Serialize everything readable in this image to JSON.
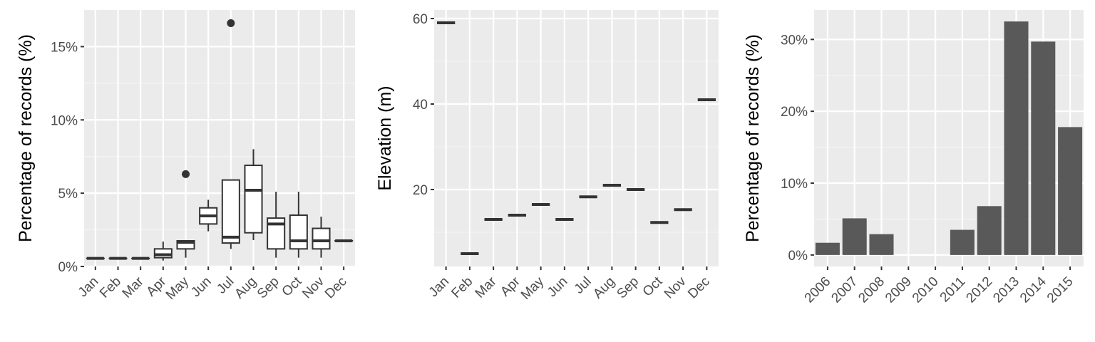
{
  "colors": {
    "panel_bg": "#ebebeb",
    "grid_major": "#ffffff",
    "grid_minor": "#f5f5f5",
    "box_stroke": "#333333",
    "bar_fill": "#595959",
    "tick_text": "#4d4d4d"
  },
  "chart_data": [
    {
      "type": "box",
      "ylabel": "Percentage of records (%)",
      "xlabel": "",
      "categories": [
        "Jan",
        "Feb",
        "Mar",
        "Apr",
        "May",
        "Jun",
        "Jul",
        "Aug",
        "Sep",
        "Oct",
        "Nov",
        "Dec"
      ],
      "ylim": [
        0,
        17.5
      ],
      "yticks": [
        0,
        5,
        10,
        15
      ],
      "ytick_labels": [
        "0%",
        "5%",
        "10%",
        "15%"
      ],
      "boxes": [
        {
          "min": 0.55,
          "q1": 0.55,
          "median": 0.55,
          "q3": 0.55,
          "max": 0.55,
          "outliers": []
        },
        {
          "min": 0.55,
          "q1": 0.55,
          "median": 0.55,
          "q3": 0.55,
          "max": 0.55,
          "outliers": []
        },
        {
          "min": 0.55,
          "q1": 0.55,
          "median": 0.55,
          "q3": 0.55,
          "max": 0.55,
          "outliers": []
        },
        {
          "min": 0.4,
          "q1": 0.6,
          "median": 0.8,
          "q3": 1.2,
          "max": 1.7,
          "outliers": []
        },
        {
          "min": 0.6,
          "q1": 1.2,
          "median": 1.65,
          "q3": 1.75,
          "max": 1.75,
          "outliers": [
            6.3
          ]
        },
        {
          "min": 2.4,
          "q1": 2.9,
          "median": 3.45,
          "q3": 4.0,
          "max": 4.55,
          "outliers": []
        },
        {
          "min": 1.2,
          "q1": 1.6,
          "median": 2.0,
          "q3": 5.9,
          "max": 5.9,
          "outliers": [
            16.6
          ]
        },
        {
          "min": 1.8,
          "q1": 2.3,
          "median": 5.2,
          "q3": 6.9,
          "max": 8.0,
          "outliers": []
        },
        {
          "min": 0.6,
          "q1": 1.2,
          "median": 2.9,
          "q3": 3.3,
          "max": 5.1,
          "outliers": []
        },
        {
          "min": 0.6,
          "q1": 1.2,
          "median": 1.75,
          "q3": 3.5,
          "max": 5.1,
          "outliers": []
        },
        {
          "min": 0.6,
          "q1": 1.2,
          "median": 1.75,
          "q3": 2.6,
          "max": 3.4,
          "outliers": []
        },
        {
          "min": 1.75,
          "q1": 1.75,
          "median": 1.75,
          "q3": 1.75,
          "max": 1.75,
          "outliers": []
        }
      ]
    },
    {
      "type": "box",
      "ylabel": "Elevation (m)",
      "xlabel": "",
      "categories": [
        "Jan",
        "Feb",
        "Mar",
        "Apr",
        "May",
        "Jun",
        "Jul",
        "Aug",
        "Sep",
        "Oct",
        "Nov",
        "Dec"
      ],
      "ylim": [
        2,
        62
      ],
      "yticks": [
        20,
        40,
        60
      ],
      "ytick_labels": [
        "20",
        "40",
        "60"
      ],
      "values": [
        59,
        5,
        13,
        14,
        16.5,
        13,
        18.3,
        21,
        20,
        12.3,
        15.3,
        41
      ]
    },
    {
      "type": "bar",
      "ylabel": "Percentage of records (%)",
      "xlabel": "",
      "categories": [
        "2006",
        "2007",
        "2008",
        "2009",
        "2010",
        "2011",
        "2012",
        "2013",
        "2014",
        "2015"
      ],
      "values": [
        1.7,
        5.1,
        2.9,
        0,
        0,
        3.5,
        6.8,
        32.5,
        29.7,
        17.8
      ],
      "ylim": [
        -1.6,
        34.1
      ],
      "yticks": [
        0,
        10,
        20,
        30
      ],
      "ytick_labels": [
        "0%",
        "10%",
        "20%",
        "30%"
      ]
    }
  ]
}
